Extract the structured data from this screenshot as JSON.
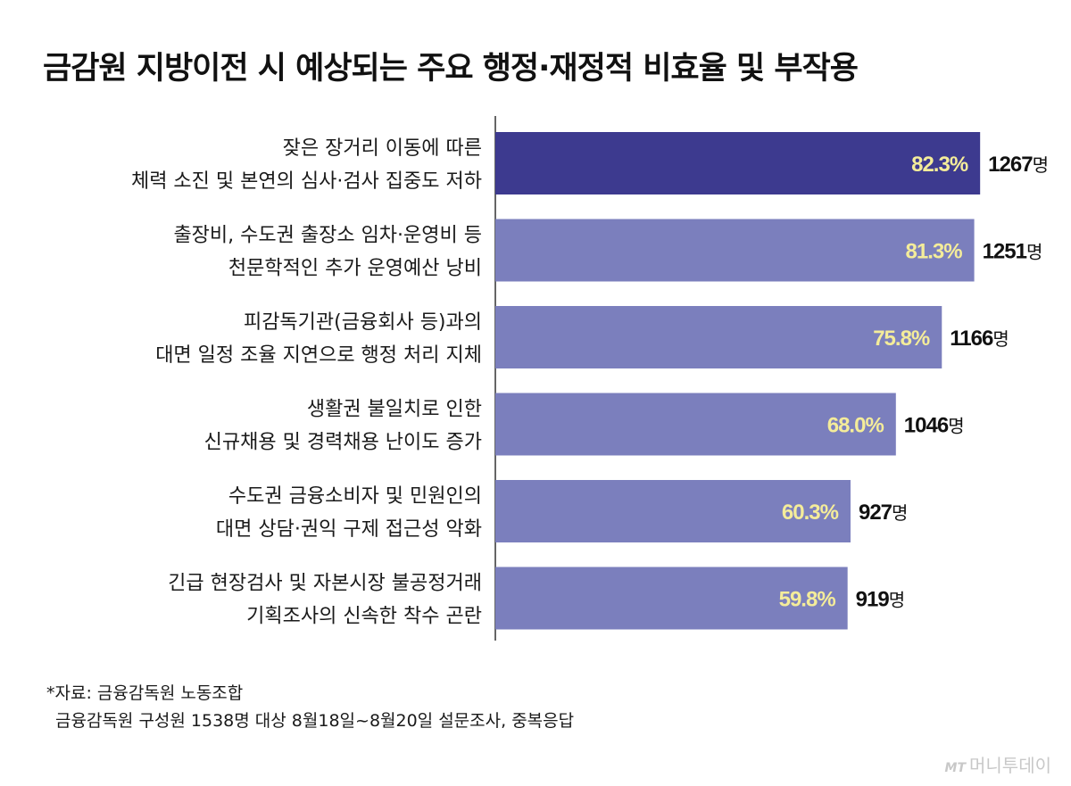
{
  "title": "금감원 지방이전 시 예상되는 주요 행정·재정적 비효율 및 부작용",
  "chart_data": {
    "type": "bar",
    "orientation": "horizontal",
    "categories": [
      [
        "잦은 장거리 이동에 따른",
        "체력 소진 및 본연의 심사·검사 집중도 저하"
      ],
      [
        "출장비, 수도권 출장소 임차·운영비 등",
        "천문학적인 추가 운영예산 낭비"
      ],
      [
        "피감독기관(금융회사 등)과의",
        "대면 일정 조율 지연으로 행정 처리 지체"
      ],
      [
        "생활권 불일치로 인한",
        "신규채용 및 경력채용 난이도 증가"
      ],
      [
        "수도권 금융소비자 및 민원인의",
        "대면 상담·권익 구제 접근성 악화"
      ],
      [
        "긴급 현장검사 및 자본시장 불공정거래",
        "기획조사의 신속한 착수 곤란"
      ]
    ],
    "values": [
      82.3,
      81.3,
      75.8,
      68.0,
      60.3,
      59.8
    ],
    "value_labels": [
      "82.3%",
      "81.3%",
      "75.8%",
      "68.0%",
      "60.3%",
      "59.8%"
    ],
    "counts": [
      "1267",
      "1251",
      "1166",
      "1046",
      "927",
      "919"
    ],
    "count_unit": "명",
    "colors": {
      "highlight": "#3d3a8f",
      "default": "#7b7fbd",
      "value_label": "#f4ec9a",
      "axis": "#333333"
    },
    "xlim": [
      0,
      100
    ]
  },
  "footnote": {
    "source": "*자료: 금융감독원 노동조합",
    "survey": "금융감독원 구성원 1538명 대상 8월18일~8월20일 설문조사, 중복응답"
  },
  "credit": {
    "mark": "MT",
    "text": "머니투데이"
  }
}
